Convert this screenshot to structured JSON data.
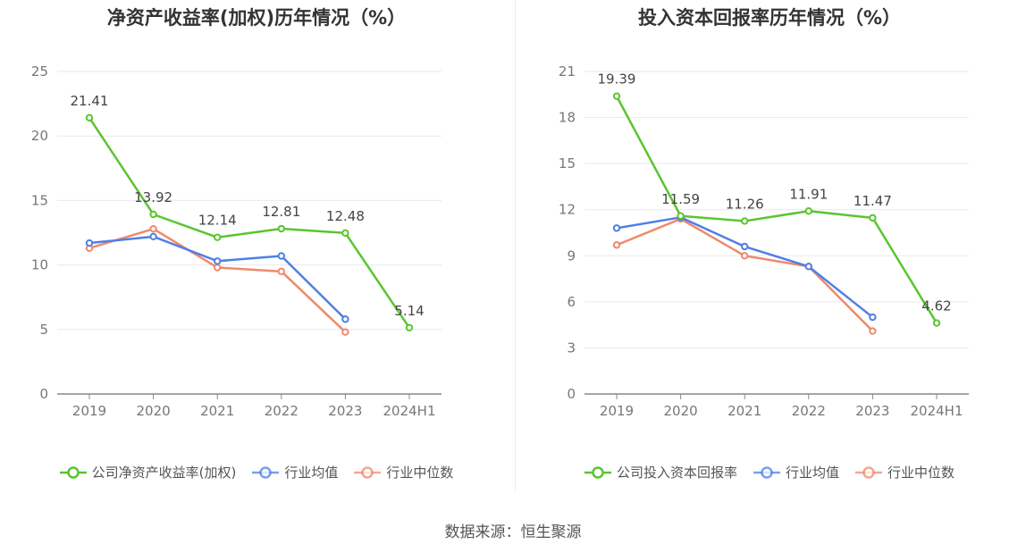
{
  "source_text": "数据来源：恒生聚源",
  "colors": {
    "company": "#5ac52e",
    "avg": "#4f7fe6",
    "median": "#f0896a",
    "grid": "#e6e9f2",
    "axis": "#888888",
    "tick_text": "#777777",
    "label_text": "#444444"
  },
  "chart_data": [
    {
      "type": "line",
      "title": "净资产收益率(加权)历年情况（%）",
      "categories": [
        "2019",
        "2020",
        "2021",
        "2022",
        "2023",
        "2024H1"
      ],
      "ylim": [
        0,
        25
      ],
      "yticks": [
        "0",
        "5",
        "10",
        "15",
        "20",
        "25"
      ],
      "grid": true,
      "legend_position": "bottom",
      "series": [
        {
          "name": "公司净资产收益率(加权)",
          "key": "company",
          "values": [
            21.41,
            13.92,
            12.14,
            12.81,
            12.48,
            5.14
          ],
          "labels": [
            "21.41",
            "13.92",
            "12.14",
            "12.81",
            "12.48",
            "5.14"
          ]
        },
        {
          "name": "行业均值",
          "key": "avg",
          "values": [
            11.7,
            12.2,
            10.3,
            10.7,
            5.8,
            null
          ]
        },
        {
          "name": "行业中位数",
          "key": "median",
          "values": [
            11.3,
            12.8,
            9.8,
            9.5,
            4.8,
            null
          ]
        }
      ]
    },
    {
      "type": "line",
      "title": "投入资本回报率历年情况（%）",
      "categories": [
        "2019",
        "2020",
        "2021",
        "2022",
        "2023",
        "2024H1"
      ],
      "ylim": [
        0,
        21
      ],
      "yticks": [
        "0",
        "3",
        "6",
        "9",
        "12",
        "15",
        "18",
        "21"
      ],
      "grid": true,
      "legend_position": "bottom",
      "series": [
        {
          "name": "公司投入资本回报率",
          "key": "company",
          "values": [
            19.39,
            11.59,
            11.26,
            11.91,
            11.47,
            4.62
          ],
          "labels": [
            "19.39",
            "11.59",
            "11.26",
            "11.91",
            "11.47",
            "4.62"
          ]
        },
        {
          "name": "行业均值",
          "key": "avg",
          "values": [
            10.8,
            11.5,
            9.6,
            8.3,
            5.0,
            null
          ]
        },
        {
          "name": "行业中位数",
          "key": "median",
          "values": [
            9.7,
            11.4,
            9.0,
            8.3,
            4.1,
            null
          ]
        }
      ]
    }
  ]
}
